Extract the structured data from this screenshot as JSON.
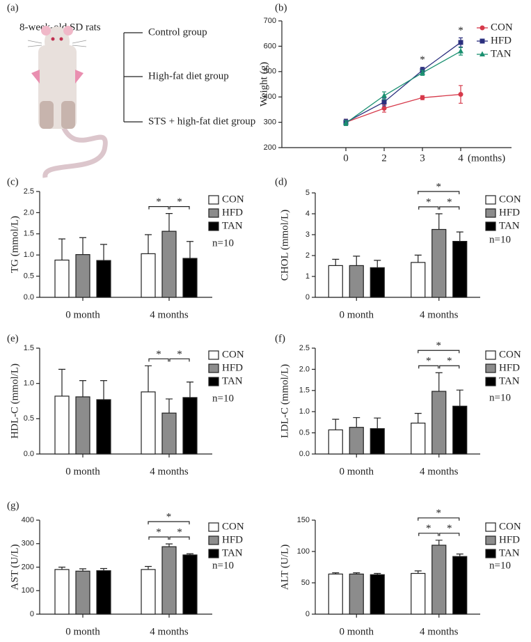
{
  "diagram": {
    "panel_label": "(a)",
    "title": "8-week-old SD rats",
    "groups": [
      "Control group",
      "High-fat diet group",
      "STS + high-fat diet group"
    ]
  },
  "chart_data": [
    {
      "type": "line",
      "panel_label": "(b)",
      "ylabel": "Weight (g)",
      "xlabel": "(months)",
      "categories": [
        "0",
        "2",
        "3",
        "4"
      ],
      "ylim": [
        200,
        700
      ],
      "yticks": [
        200,
        300,
        400,
        500,
        600,
        700
      ],
      "series": [
        {
          "name": "CON",
          "color": "#d6394a",
          "marker": "circle",
          "values": [
            300,
            355,
            397,
            410
          ],
          "errors": [
            12,
            15,
            8,
            35
          ]
        },
        {
          "name": "HFD",
          "color": "#2b2f7e",
          "marker": "square",
          "values": [
            300,
            380,
            505,
            615
          ],
          "errors": [
            12,
            15,
            12,
            18
          ]
        },
        {
          "name": "TAN",
          "color": "#1a9070",
          "marker": "triangle",
          "values": [
            297,
            405,
            495,
            580
          ],
          "errors": [
            10,
            15,
            10,
            15
          ]
        }
      ],
      "annotations": [
        {
          "category": "3",
          "text": "*"
        },
        {
          "category": "4",
          "text": "*"
        }
      ]
    },
    {
      "type": "bar",
      "panel_label": "(c)",
      "ylabel": "TG (mmol/L)",
      "note": "n=10",
      "categories": [
        "0 month",
        "4 months"
      ],
      "ylim": [
        0,
        2.5
      ],
      "yticks": [
        {
          "value": 0,
          "label": "0.0"
        },
        0.5,
        {
          "value": 1,
          "label": "1.0"
        },
        1.5,
        {
          "value": 2,
          "label": "2.0"
        },
        2.5
      ],
      "series": [
        {
          "name": "CON",
          "color": "#ffffff",
          "values": [
            0.88,
            1.03
          ],
          "errors": [
            0.5,
            0.45
          ]
        },
        {
          "name": "HFD",
          "color": "#8c8c8c",
          "values": [
            1.01,
            1.56
          ],
          "errors": [
            0.4,
            0.42
          ]
        },
        {
          "name": "TAN",
          "color": "#000000",
          "values": [
            0.87,
            0.92
          ],
          "errors": [
            0.38,
            0.4
          ]
        }
      ],
      "significance": [
        {
          "group": "4 months",
          "between": [
            "CON",
            "HFD"
          ],
          "label": "*"
        },
        {
          "group": "4 months",
          "between": [
            "HFD",
            "TAN"
          ],
          "label": "*"
        }
      ]
    },
    {
      "type": "bar",
      "panel_label": "(d)",
      "ylabel": "CHOL (mmol/L)",
      "note": "n=10",
      "categories": [
        "0 month",
        "4 months"
      ],
      "ylim": [
        0,
        5
      ],
      "yticks": [
        0,
        1,
        2,
        3,
        4,
        5
      ],
      "series": [
        {
          "name": "CON",
          "color": "#ffffff",
          "values": [
            1.52,
            1.67
          ],
          "errors": [
            0.3,
            0.35
          ]
        },
        {
          "name": "HFD",
          "color": "#8c8c8c",
          "values": [
            1.52,
            3.25
          ],
          "errors": [
            0.45,
            0.75
          ]
        },
        {
          "name": "TAN",
          "color": "#000000",
          "values": [
            1.42,
            2.68
          ],
          "errors": [
            0.35,
            0.45
          ]
        }
      ],
      "significance": [
        {
          "group": "4 months",
          "between": [
            "CON",
            "HFD"
          ],
          "label": "*"
        },
        {
          "group": "4 months",
          "between": [
            "HFD",
            "TAN"
          ],
          "label": "*"
        },
        {
          "group": "4 months",
          "between": [
            "CON",
            "TAN"
          ],
          "label": "*"
        }
      ]
    },
    {
      "type": "bar",
      "panel_label": "(e)",
      "ylabel": "HDL-C (mmol/L)",
      "note": "n=10",
      "categories": [
        "0 month",
        "4 months"
      ],
      "ylim": [
        0,
        1.5
      ],
      "yticks": [
        {
          "value": 0,
          "label": "0.0"
        },
        0.5,
        {
          "value": 1,
          "label": "1.0"
        },
        1.5
      ],
      "series": [
        {
          "name": "CON",
          "color": "#ffffff",
          "values": [
            0.82,
            0.88
          ],
          "errors": [
            0.38,
            0.37
          ]
        },
        {
          "name": "HFD",
          "color": "#8c8c8c",
          "values": [
            0.81,
            0.58
          ],
          "errors": [
            0.23,
            0.2
          ]
        },
        {
          "name": "TAN",
          "color": "#000000",
          "values": [
            0.77,
            0.8
          ],
          "errors": [
            0.27,
            0.22
          ]
        }
      ],
      "significance": [
        {
          "group": "4 months",
          "between": [
            "CON",
            "HFD"
          ],
          "label": "*"
        },
        {
          "group": "4 months",
          "between": [
            "HFD",
            "TAN"
          ],
          "label": "*"
        }
      ]
    },
    {
      "type": "bar",
      "panel_label": "(f)",
      "ylabel": "LDL-C (mmol/L)",
      "note": "n=10",
      "categories": [
        "0 month",
        "4 months"
      ],
      "ylim": [
        0,
        2.5
      ],
      "yticks": [
        {
          "value": 0,
          "label": "0.0"
        },
        0.5,
        {
          "value": 1,
          "label": "1.0"
        },
        1.5,
        {
          "value": 2,
          "label": "2.0"
        },
        2.5
      ],
      "series": [
        {
          "name": "CON",
          "color": "#ffffff",
          "values": [
            0.57,
            0.73
          ],
          "errors": [
            0.25,
            0.23
          ]
        },
        {
          "name": "HFD",
          "color": "#8c8c8c",
          "values": [
            0.63,
            1.48
          ],
          "errors": [
            0.23,
            0.44
          ]
        },
        {
          "name": "TAN",
          "color": "#000000",
          "values": [
            0.6,
            1.13
          ],
          "errors": [
            0.25,
            0.38
          ]
        }
      ],
      "significance": [
        {
          "group": "4 months",
          "between": [
            "CON",
            "HFD"
          ],
          "label": "*"
        },
        {
          "group": "4 months",
          "between": [
            "HFD",
            "TAN"
          ],
          "label": "*"
        },
        {
          "group": "4 months",
          "between": [
            "CON",
            "TAN"
          ],
          "label": "*"
        }
      ]
    },
    {
      "type": "bar",
      "panel_label": "(g)",
      "ylabel": "AST (U/L)",
      "note": "n=10",
      "categories": [
        "0 month",
        "4 months"
      ],
      "ylim": [
        0,
        400
      ],
      "yticks": [
        0,
        100,
        200,
        300,
        400
      ],
      "series": [
        {
          "name": "CON",
          "color": "#ffffff",
          "values": [
            190,
            190
          ],
          "errors": [
            10,
            13
          ]
        },
        {
          "name": "HFD",
          "color": "#8c8c8c",
          "values": [
            183,
            287
          ],
          "errors": [
            10,
            12
          ]
        },
        {
          "name": "TAN",
          "color": "#000000",
          "values": [
            185,
            252
          ],
          "errors": [
            9,
            5
          ]
        }
      ],
      "significance": [
        {
          "group": "4 months",
          "between": [
            "CON",
            "HFD"
          ],
          "label": "*"
        },
        {
          "group": "4 months",
          "between": [
            "HFD",
            "TAN"
          ],
          "label": "*"
        },
        {
          "group": "4 months",
          "between": [
            "CON",
            "TAN"
          ],
          "label": "*"
        }
      ]
    },
    {
      "type": "bar",
      "ylabel": "ALT (U/L)",
      "note": "n=10",
      "categories": [
        "0 month",
        "4 months"
      ],
      "ylim": [
        0,
        150
      ],
      "yticks": [
        0,
        50,
        100,
        150
      ],
      "series": [
        {
          "name": "CON",
          "color": "#ffffff",
          "values": [
            64,
            65
          ],
          "errors": [
            2,
            4
          ]
        },
        {
          "name": "HFD",
          "color": "#8c8c8c",
          "values": [
            64,
            110
          ],
          "errors": [
            2,
            8
          ]
        },
        {
          "name": "TAN",
          "color": "#000000",
          "values": [
            63,
            92
          ],
          "errors": [
            2,
            4
          ]
        }
      ],
      "significance": [
        {
          "group": "4 months",
          "between": [
            "CON",
            "HFD"
          ],
          "label": "*"
        },
        {
          "group": "4 months",
          "between": [
            "HFD",
            "TAN"
          ],
          "label": "*"
        },
        {
          "group": "4 months",
          "between": [
            "CON",
            "TAN"
          ],
          "label": "*"
        }
      ]
    }
  ]
}
